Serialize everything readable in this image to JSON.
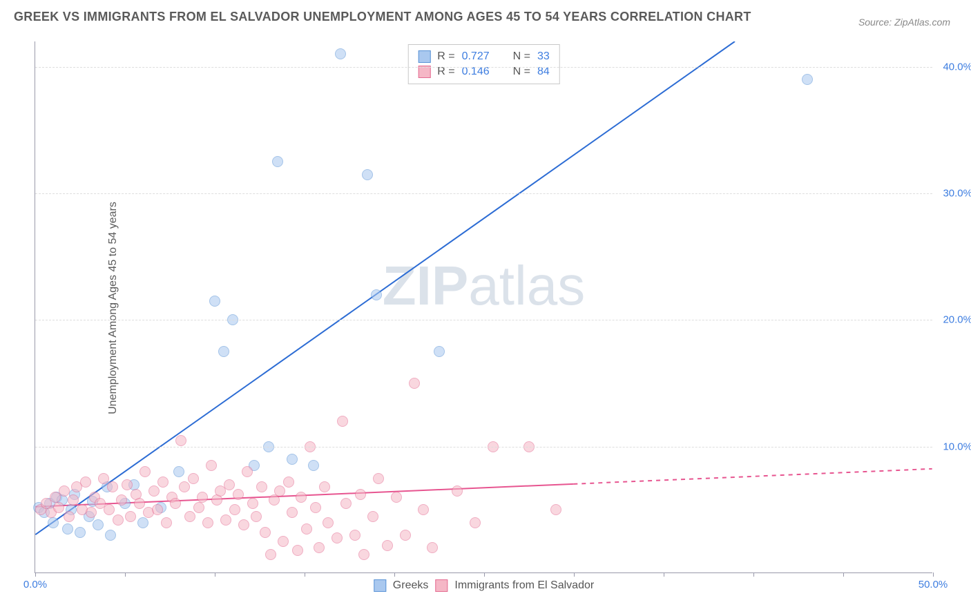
{
  "title": "GREEK VS IMMIGRANTS FROM EL SALVADOR UNEMPLOYMENT AMONG AGES 45 TO 54 YEARS CORRELATION CHART",
  "source": "Source: ZipAtlas.com",
  "y_axis_label": "Unemployment Among Ages 45 to 54 years",
  "watermark": {
    "text_bold": "ZIP",
    "text_light": "atlas"
  },
  "chart": {
    "type": "scatter",
    "xlim": [
      0,
      50
    ],
    "ylim": [
      0,
      42
    ],
    "x_ticks": [
      0,
      5,
      10,
      15,
      20,
      25,
      30,
      35,
      40,
      45,
      50
    ],
    "x_tick_labels": {
      "0": "0.0%",
      "50": "50.0%"
    },
    "y_ticks": [
      10,
      20,
      30,
      40
    ],
    "y_tick_labels": {
      "10": "10.0%",
      "20": "20.0%",
      "30": "30.0%",
      "40": "40.0%"
    },
    "grid_color": "#dddddd",
    "background_color": "#ffffff",
    "series": [
      {
        "name": "Greeks",
        "label": "Greeks",
        "color_fill": "#a9c8ef",
        "color_stroke": "#5a93d6",
        "marker": "circle",
        "marker_size": 16,
        "r_value": "0.727",
        "n_value": "33",
        "regression": {
          "color": "#2c6cd4",
          "width": 2,
          "style": "solid",
          "x1": 0,
          "y1": 3.0,
          "x2": 39,
          "y2": 42
        },
        "points": [
          [
            0.2,
            5.2
          ],
          [
            0.5,
            4.8
          ],
          [
            0.8,
            5.5
          ],
          [
            1.0,
            4.0
          ],
          [
            1.2,
            6.0
          ],
          [
            1.5,
            5.8
          ],
          [
            1.8,
            3.5
          ],
          [
            2.0,
            5.0
          ],
          [
            2.2,
            6.2
          ],
          [
            2.5,
            3.2
          ],
          [
            3.0,
            4.5
          ],
          [
            3.2,
            5.7
          ],
          [
            3.5,
            3.8
          ],
          [
            4.0,
            6.8
          ],
          [
            4.2,
            3.0
          ],
          [
            5.0,
            5.5
          ],
          [
            5.5,
            7.0
          ],
          [
            6.0,
            4.0
          ],
          [
            7.0,
            5.2
          ],
          [
            8.0,
            8.0
          ],
          [
            10.0,
            21.5
          ],
          [
            10.5,
            17.5
          ],
          [
            11.0,
            20.0
          ],
          [
            12.2,
            8.5
          ],
          [
            13.0,
            10.0
          ],
          [
            13.5,
            32.5
          ],
          [
            14.3,
            9.0
          ],
          [
            15.5,
            8.5
          ],
          [
            17.0,
            41.0
          ],
          [
            18.5,
            31.5
          ],
          [
            19.0,
            22.0
          ],
          [
            22.5,
            17.5
          ],
          [
            43.0,
            39.0
          ]
        ]
      },
      {
        "name": "Immigrants from El Salvador",
        "label": "Immigrants from El Salvador",
        "color_fill": "#f5b7c6",
        "color_stroke": "#e46b91",
        "marker": "circle",
        "marker_size": 16,
        "r_value": "0.146",
        "n_value": "84",
        "regression": {
          "color": "#e75590",
          "width": 2,
          "style_solid_until_x": 30,
          "x1": 0,
          "y1": 5.2,
          "x2": 50,
          "y2": 8.2
        },
        "points": [
          [
            0.3,
            5.0
          ],
          [
            0.6,
            5.5
          ],
          [
            0.9,
            4.8
          ],
          [
            1.1,
            6.0
          ],
          [
            1.3,
            5.2
          ],
          [
            1.6,
            6.5
          ],
          [
            1.9,
            4.5
          ],
          [
            2.1,
            5.8
          ],
          [
            2.3,
            6.8
          ],
          [
            2.6,
            5.0
          ],
          [
            2.8,
            7.2
          ],
          [
            3.1,
            4.8
          ],
          [
            3.3,
            6.0
          ],
          [
            3.6,
            5.5
          ],
          [
            3.8,
            7.5
          ],
          [
            4.1,
            5.0
          ],
          [
            4.3,
            6.8
          ],
          [
            4.6,
            4.2
          ],
          [
            4.8,
            5.8
          ],
          [
            5.1,
            7.0
          ],
          [
            5.3,
            4.5
          ],
          [
            5.6,
            6.2
          ],
          [
            5.8,
            5.5
          ],
          [
            6.1,
            8.0
          ],
          [
            6.3,
            4.8
          ],
          [
            6.6,
            6.5
          ],
          [
            6.8,
            5.0
          ],
          [
            7.1,
            7.2
          ],
          [
            7.3,
            4.0
          ],
          [
            7.6,
            6.0
          ],
          [
            7.8,
            5.5
          ],
          [
            8.1,
            10.5
          ],
          [
            8.3,
            6.8
          ],
          [
            8.6,
            4.5
          ],
          [
            8.8,
            7.5
          ],
          [
            9.1,
            5.2
          ],
          [
            9.3,
            6.0
          ],
          [
            9.6,
            4.0
          ],
          [
            9.8,
            8.5
          ],
          [
            10.1,
            5.8
          ],
          [
            10.3,
            6.5
          ],
          [
            10.6,
            4.2
          ],
          [
            10.8,
            7.0
          ],
          [
            11.1,
            5.0
          ],
          [
            11.3,
            6.2
          ],
          [
            11.6,
            3.8
          ],
          [
            11.8,
            8.0
          ],
          [
            12.1,
            5.5
          ],
          [
            12.3,
            4.5
          ],
          [
            12.6,
            6.8
          ],
          [
            12.8,
            3.2
          ],
          [
            13.1,
            1.5
          ],
          [
            13.3,
            5.8
          ],
          [
            13.6,
            6.5
          ],
          [
            13.8,
            2.5
          ],
          [
            14.1,
            7.2
          ],
          [
            14.3,
            4.8
          ],
          [
            14.6,
            1.8
          ],
          [
            14.8,
            6.0
          ],
          [
            15.1,
            3.5
          ],
          [
            15.3,
            10.0
          ],
          [
            15.6,
            5.2
          ],
          [
            15.8,
            2.0
          ],
          [
            16.1,
            6.8
          ],
          [
            16.3,
            4.0
          ],
          [
            16.8,
            2.8
          ],
          [
            17.1,
            12.0
          ],
          [
            17.3,
            5.5
          ],
          [
            17.8,
            3.0
          ],
          [
            18.1,
            6.2
          ],
          [
            18.3,
            1.5
          ],
          [
            18.8,
            4.5
          ],
          [
            19.1,
            7.5
          ],
          [
            19.6,
            2.2
          ],
          [
            20.1,
            6.0
          ],
          [
            20.6,
            3.0
          ],
          [
            21.1,
            15.0
          ],
          [
            21.6,
            5.0
          ],
          [
            22.1,
            2.0
          ],
          [
            23.5,
            6.5
          ],
          [
            24.5,
            4.0
          ],
          [
            25.5,
            10.0
          ],
          [
            27.5,
            10.0
          ],
          [
            29.0,
            5.0
          ]
        ]
      }
    ],
    "legend_top": {
      "r_label": "R =",
      "n_label": "N ="
    },
    "legend_bottom_labels": [
      "Greeks",
      "Immigrants from El Salvador"
    ]
  }
}
